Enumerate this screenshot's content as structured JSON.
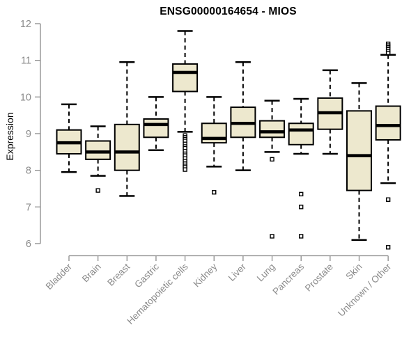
{
  "chart_data": {
    "type": "boxplot",
    "title": "ENSG00000164654 - MIOS",
    "xlabel": "",
    "ylabel": "Expression",
    "ylim": [
      6,
      12
    ],
    "yticks": [
      6,
      7,
      8,
      9,
      10,
      11,
      12
    ],
    "grid": false,
    "legend": "none",
    "colors": {
      "box_fill": "#EDE8CE",
      "box_stroke": "#000000",
      "axis": "#8B8B8B",
      "tick_label": "#8B8B8B",
      "title": "#000000",
      "background": "#FFFFFF"
    },
    "categories": [
      "Bladder",
      "Brain",
      "Breast",
      "Gastric",
      "Hematopoietic cells",
      "Kidney",
      "Liver",
      "Lung",
      "Pancreas",
      "Prostate",
      "Skin",
      "Unknown / Other"
    ],
    "series": [
      {
        "name": "Bladder",
        "whisker_low": 7.95,
        "q1": 8.45,
        "median": 8.75,
        "q3": 9.1,
        "whisker_high": 9.8,
        "outliers": []
      },
      {
        "name": "Brain",
        "whisker_low": 7.85,
        "q1": 8.3,
        "median": 8.5,
        "q3": 8.8,
        "whisker_high": 9.2,
        "outliers": [
          7.45
        ]
      },
      {
        "name": "Breast",
        "whisker_low": 7.3,
        "q1": 8.0,
        "median": 8.5,
        "q3": 9.25,
        "whisker_high": 10.95,
        "outliers": []
      },
      {
        "name": "Gastric",
        "whisker_low": 8.55,
        "q1": 8.9,
        "median": 9.25,
        "q3": 9.4,
        "whisker_high": 10.0,
        "outliers": []
      },
      {
        "name": "Hematopoietic cells",
        "whisker_low": 9.05,
        "q1": 10.15,
        "median": 10.67,
        "q3": 10.9,
        "whisker_high": 11.8,
        "outliers": [
          8.95,
          8.9,
          8.85,
          8.8,
          8.72,
          8.65,
          8.6,
          8.52,
          8.45,
          8.4,
          8.32,
          8.25,
          8.18,
          8.12,
          8.08,
          8.02
        ]
      },
      {
        "name": "Kidney",
        "whisker_low": 8.1,
        "q1": 8.75,
        "median": 8.87,
        "q3": 9.28,
        "whisker_high": 10.0,
        "outliers": [
          7.4
        ]
      },
      {
        "name": "Liver",
        "whisker_low": 8.0,
        "q1": 8.9,
        "median": 9.28,
        "q3": 9.72,
        "whisker_high": 10.95,
        "outliers": []
      },
      {
        "name": "Lung",
        "whisker_low": 8.5,
        "q1": 8.9,
        "median": 9.05,
        "q3": 9.35,
        "whisker_high": 9.9,
        "outliers": [
          8.3,
          6.2
        ]
      },
      {
        "name": "Pancreas",
        "whisker_low": 8.45,
        "q1": 8.7,
        "median": 9.1,
        "q3": 9.28,
        "whisker_high": 9.95,
        "outliers": [
          7.35,
          7.0,
          6.2
        ]
      },
      {
        "name": "Prostate",
        "whisker_low": 8.45,
        "q1": 9.12,
        "median": 9.57,
        "q3": 9.97,
        "whisker_high": 10.73,
        "outliers": []
      },
      {
        "name": "Skin",
        "whisker_low": 6.1,
        "q1": 7.45,
        "median": 8.4,
        "q3": 9.62,
        "whisker_high": 10.38,
        "outliers": []
      },
      {
        "name": "Unknown / Other",
        "whisker_low": 7.65,
        "q1": 8.83,
        "median": 9.22,
        "q3": 9.75,
        "whisker_high": 11.15,
        "outliers": [
          11.45,
          11.4,
          11.35,
          11.3,
          11.25,
          11.2,
          7.2,
          5.9
        ]
      }
    ]
  }
}
